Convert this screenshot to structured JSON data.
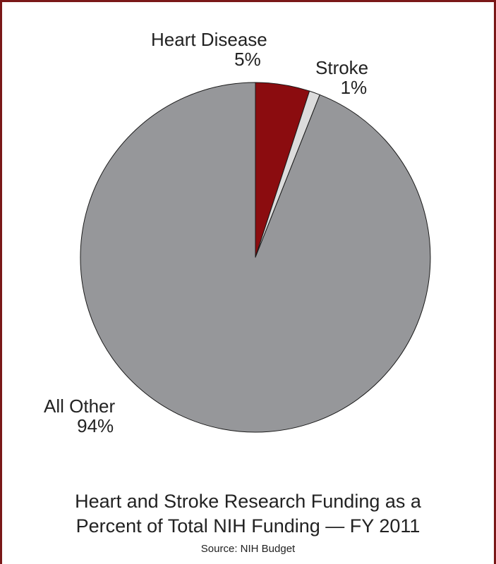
{
  "chart_data": {
    "type": "pie",
    "title_lines": [
      "Heart and Stroke Research Funding as a",
      "Percent of Total NIH Funding — FY 2011"
    ],
    "source": "Source: NIH Budget",
    "start_angle_deg": 0,
    "direction": "clockwise",
    "slices": [
      {
        "name": "Heart Disease",
        "value": 5,
        "value_label": "5%",
        "color": "#8b0c0f"
      },
      {
        "name": "Stroke",
        "value": 1,
        "value_label": "1%",
        "color": "#dcdcdc"
      },
      {
        "name": "All Other",
        "value": 94,
        "value_label": "94%",
        "color": "#96979a"
      }
    ]
  }
}
